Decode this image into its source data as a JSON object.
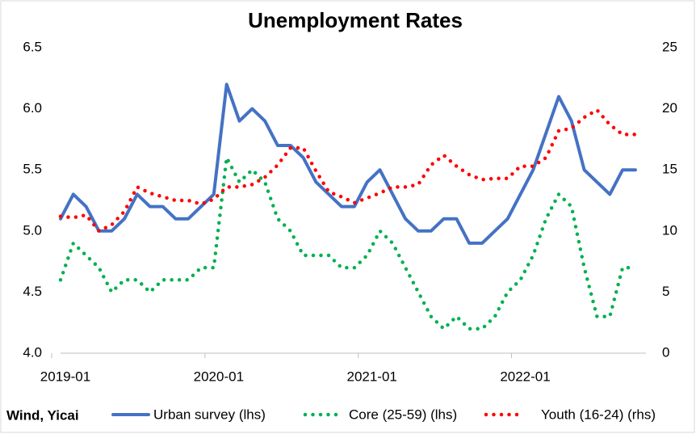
{
  "chart_data": {
    "type": "line",
    "title": "Unemployment Rates",
    "source": "Wind, Yicai",
    "categories": [
      "2019-01",
      null,
      null,
      null,
      null,
      null,
      null,
      null,
      null,
      null,
      null,
      null,
      "2020-01",
      null,
      null,
      null,
      null,
      null,
      null,
      null,
      null,
      null,
      null,
      null,
      "2021-01",
      null,
      null,
      null,
      null,
      null,
      null,
      null,
      null,
      null,
      null,
      null,
      "2022-01",
      null,
      null,
      null,
      null,
      null,
      null,
      null,
      null,
      null
    ],
    "series": [
      {
        "name": "Urban survey (lhs)",
        "color": "#4472c4",
        "style": "solid",
        "values": [
          5.1,
          5.3,
          5.2,
          5.0,
          5.0,
          5.1,
          5.3,
          5.2,
          5.2,
          5.1,
          5.1,
          5.2,
          5.3,
          6.2,
          5.9,
          6.0,
          5.9,
          5.7,
          5.7,
          5.6,
          5.4,
          5.3,
          5.2,
          5.2,
          5.4,
          5.5,
          5.3,
          5.1,
          5.0,
          5.0,
          5.1,
          5.1,
          4.9,
          4.9,
          5.0,
          5.1,
          5.3,
          5.5,
          5.8,
          6.1,
          5.9,
          5.5,
          5.4,
          5.3,
          5.5,
          5.5
        ]
      },
      {
        "name": "Core (25-59) (lhs)",
        "color": "#00b050",
        "style": "dotted",
        "values": [
          4.6,
          4.9,
          4.8,
          4.7,
          4.5,
          4.6,
          4.6,
          4.5,
          4.6,
          4.6,
          4.6,
          4.7,
          4.7,
          5.6,
          5.4,
          5.5,
          5.4,
          5.1,
          5.0,
          4.8,
          4.8,
          4.8,
          4.7,
          4.7,
          4.8,
          5.0,
          4.9,
          4.7,
          4.5,
          4.3,
          4.2,
          4.3,
          4.2,
          4.2,
          4.3,
          4.5,
          4.6,
          4.8,
          5.1,
          5.3,
          5.2,
          4.7,
          4.3,
          4.3,
          4.7,
          4.7
        ]
      },
      {
        "name": "Youth (16-24) (rhs)",
        "color": "#ff0000",
        "style": "dotted",
        "axis": "y2",
        "values": [
          11.2,
          11.1,
          11.3,
          10.0,
          10.5,
          11.6,
          13.6,
          13.1,
          12.8,
          12.5,
          12.5,
          12.2,
          12.6,
          13.6,
          13.6,
          13.8,
          14.4,
          15.4,
          16.8,
          16.8,
          14.9,
          13.2,
          12.8,
          12.3,
          12.7,
          13.1,
          13.6,
          13.6,
          13.8,
          15.4,
          16.2,
          15.3,
          14.6,
          14.2,
          14.3,
          14.3,
          15.3,
          15.3,
          16.0,
          18.2,
          18.4,
          19.3,
          19.9,
          18.7,
          17.9,
          17.9
        ]
      }
    ],
    "ylim": [
      4,
      6.5
    ],
    "yticks": [
      {
        "value": 4,
        "label": "4.0"
      },
      4.5,
      {
        "value": 5,
        "label": "5.0"
      },
      5.5,
      {
        "value": 6,
        "label": "6.0"
      },
      6.5
    ],
    "y2lim": [
      0,
      25
    ],
    "y2ticks": [
      0,
      5,
      10,
      15,
      20,
      25
    ],
    "grid": false,
    "legend": "bottom"
  }
}
